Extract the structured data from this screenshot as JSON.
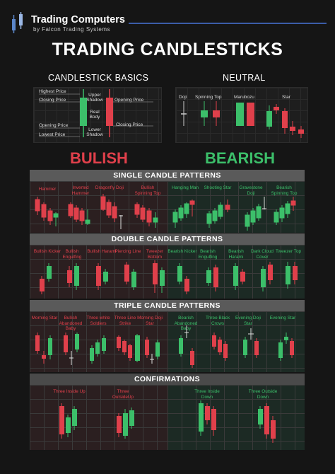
{
  "brand": {
    "name": "Trading Computers",
    "sub": "by Falcon Trading Systems"
  },
  "title": "TRADING CANDLESTICKS",
  "basics": {
    "title": "CANDLESTICK BASICS",
    "labels": {
      "highest": "Highest Price",
      "closing": "Closing Price",
      "opening": "Opening Price",
      "lowest": "Lowest Price",
      "upper": "Upper Shadow",
      "real": "Real Body",
      "lower": "Lower Shadow",
      "opening_r": "Opening Price",
      "closing_r": "Closing Price"
    }
  },
  "neutral": {
    "title": "NEUTRAL",
    "items": [
      "Doji",
      "Spinning Top",
      "Marubozu",
      "Star"
    ]
  },
  "bullish": "BULISH",
  "bearish": "BEARISH",
  "colors": {
    "bull": "#e0404b",
    "bear": "#3cbf6a"
  },
  "sections": {
    "single": {
      "title": "SINGLE CANDLE PATTERNS",
      "bull": [
        "Hammer",
        "Inverted Hammer",
        "Dragonfly Doji",
        "Bullish Spinning Top"
      ],
      "bear": [
        "Hanging Man",
        "Shooting Star",
        "Gravestone Doji",
        "Bearish Spinning Top"
      ]
    },
    "double": {
      "title": "DOUBLE CANDLE PATTERNS",
      "bull": [
        "Bullish Kicker",
        "Bullish Engulfing",
        "Bullish Harami",
        "Piercing Line",
        "Tweezer Bottom"
      ],
      "bear": [
        "Bearish Kicker",
        "Bearish Engulfing",
        "Bearish Harami",
        "Dark Cloud Cover",
        "Tweezer Top"
      ]
    },
    "triple": {
      "title": "TRIPLE CANDLE PATTERNS",
      "bull": [
        "Morning Star",
        "Bullish Abandoned Baby",
        "Three white Soldiers",
        "Three Line Strike",
        "Morning Doji Star"
      ],
      "bear": [
        "Bearish Abandoned Baby",
        "Three Black Crows",
        "Evening Doji Star",
        "Evening Star"
      ]
    },
    "confirm": {
      "title": "CONFIRMATIONS",
      "bull": [
        "Three Inside Up",
        "Three OutsideUp"
      ],
      "bear": [
        "Three Inside Down",
        "Three Outside Down"
      ]
    }
  }
}
